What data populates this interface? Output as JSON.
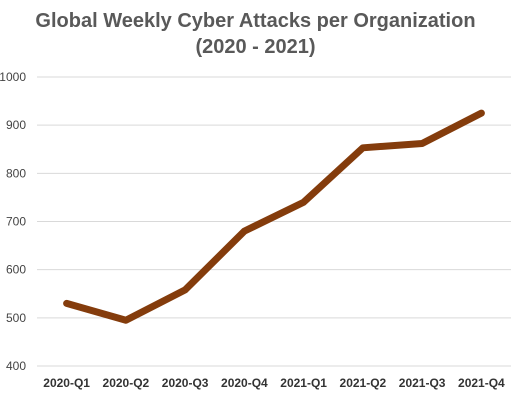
{
  "chart_data": {
    "type": "line",
    "title_line1": "Global Weekly Cyber Attacks per Organization",
    "title_line2": "(2020 - 2021)",
    "categories": [
      "2020-Q1",
      "2020-Q2",
      "2020-Q3",
      "2020-Q4",
      "2021-Q1",
      "2021-Q2",
      "2021-Q3",
      "2021-Q4"
    ],
    "series": [
      {
        "values": [
          530,
          495,
          558,
          680,
          740,
          853,
          862,
          925
        ],
        "color": "#843C0C"
      }
    ],
    "ylim": [
      400,
      1000
    ],
    "yticks": [
      400,
      500,
      600,
      700,
      800,
      900,
      1000
    ],
    "grid": true,
    "grid_color": "#D9D9D9",
    "xlabel": "",
    "ylabel": ""
  }
}
